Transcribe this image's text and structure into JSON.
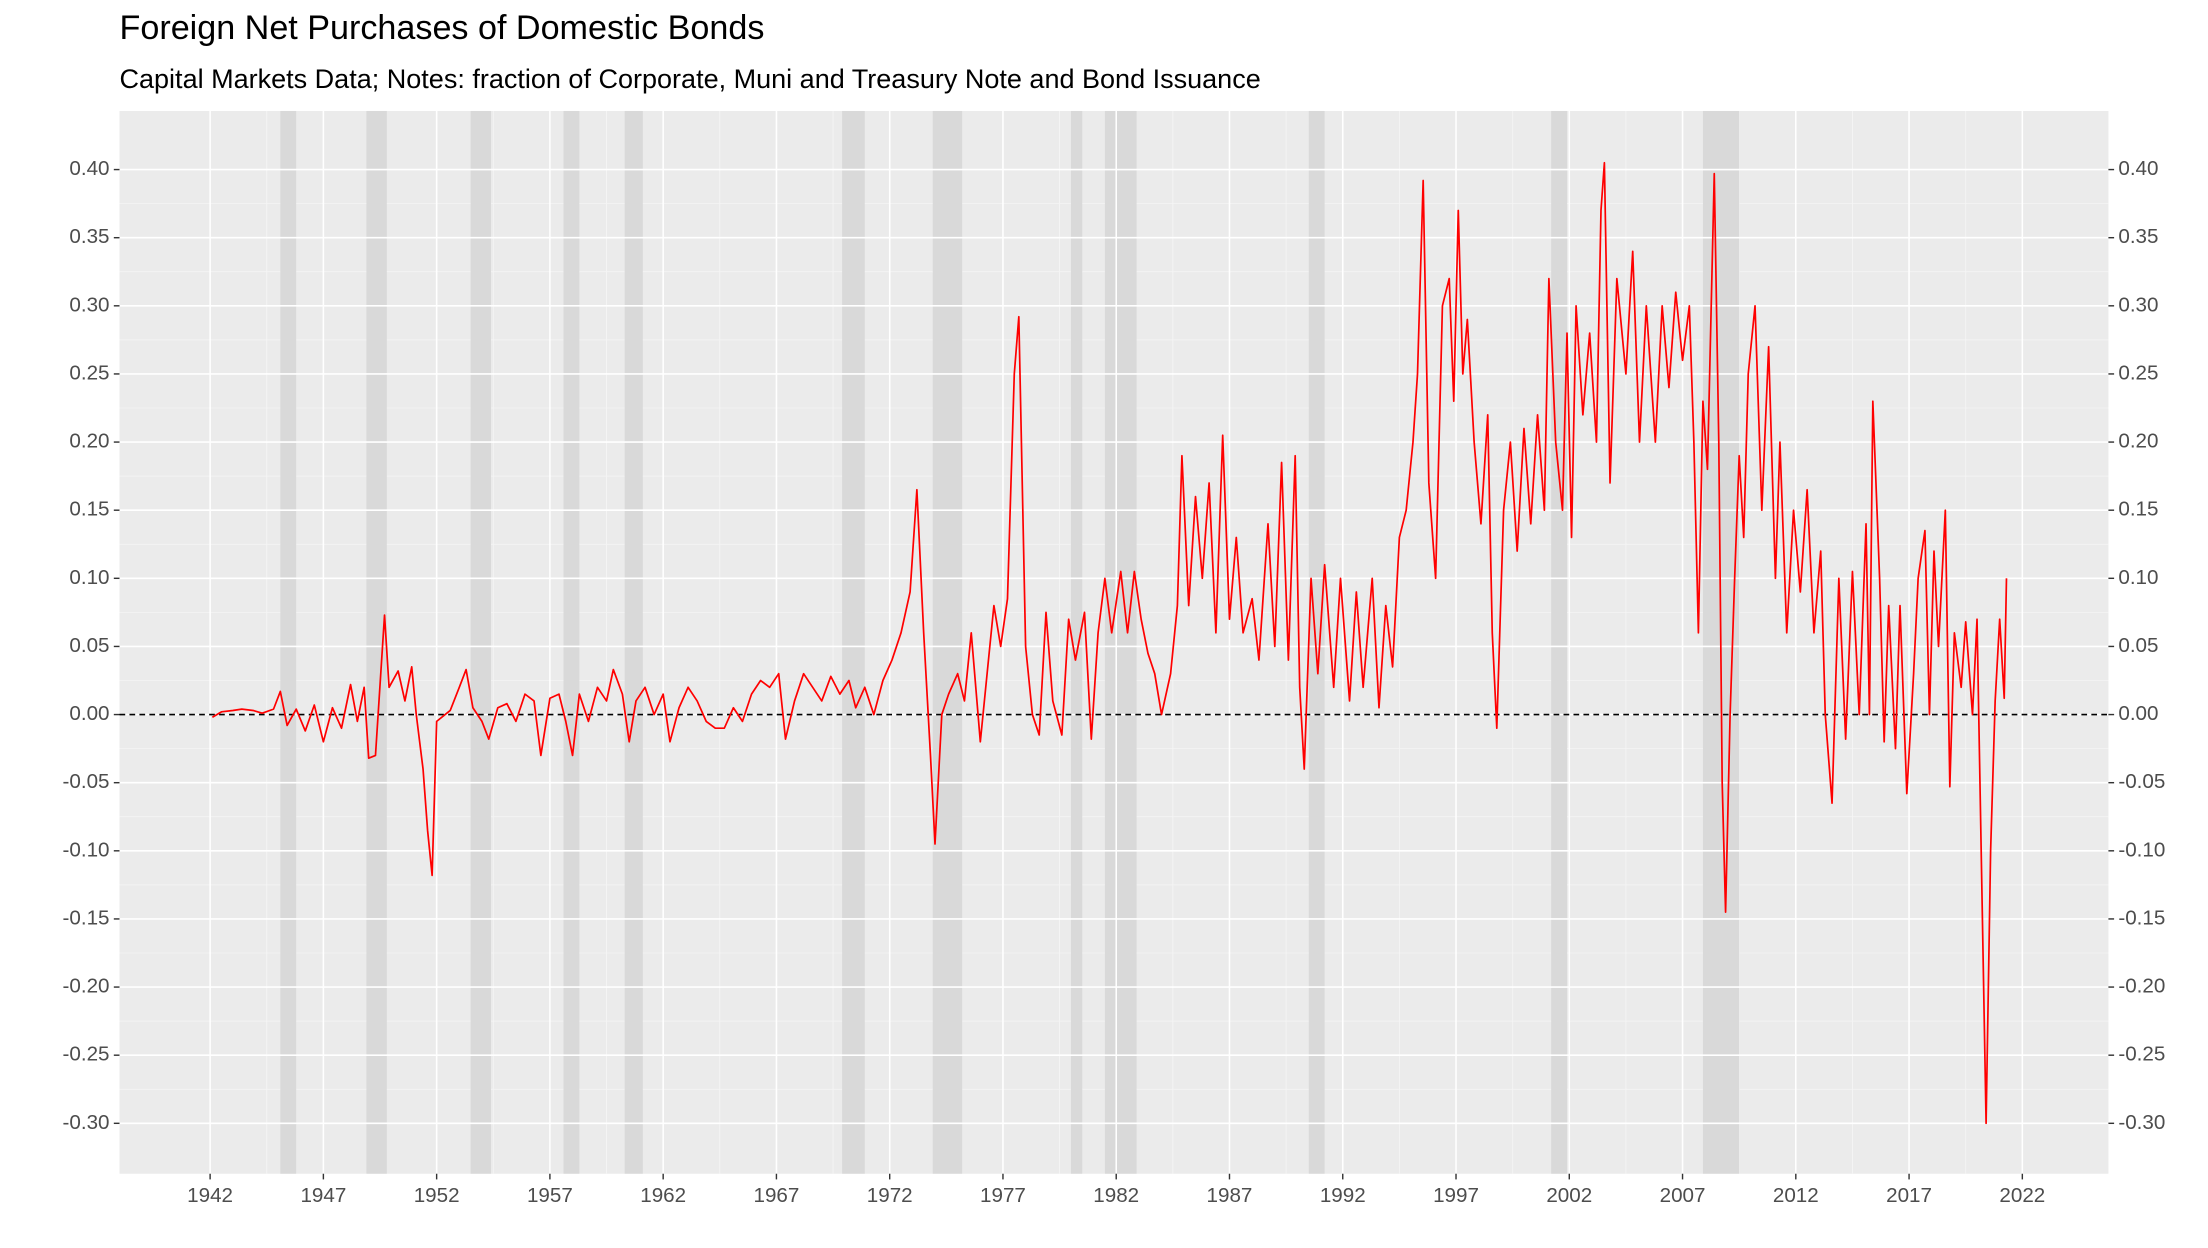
{
  "chart_data": {
    "type": "line",
    "title": "Foreign Net Purchases of Domestic Bonds",
    "subtitle": "Capital Markets Data; Notes: fraction of Corporate, Muni and Treasury Note and Bond Issuance",
    "color": "#ff0000",
    "x": [
      1942.1,
      1942.5,
      1943.0,
      1943.4,
      1943.9,
      1944.3,
      1944.8,
      1945.1,
      1945.4,
      1945.8,
      1946.2,
      1946.6,
      1947.0,
      1947.4,
      1947.8,
      1948.2,
      1948.5,
      1948.8,
      1949.0,
      1949.3,
      1949.7,
      1949.9,
      1950.3,
      1950.6,
      1950.9,
      1951.1,
      1951.4,
      1951.6,
      1951.8,
      1952.0,
      1952.6,
      1953.0,
      1953.3,
      1953.6,
      1954.0,
      1954.3,
      1954.7,
      1955.1,
      1955.5,
      1955.9,
      1956.3,
      1956.6,
      1957.0,
      1957.4,
      1957.7,
      1958.0,
      1958.3,
      1958.7,
      1959.1,
      1959.5,
      1959.8,
      1960.2,
      1960.5,
      1960.8,
      1961.2,
      1961.6,
      1962.0,
      1962.3,
      1962.7,
      1963.1,
      1963.5,
      1963.9,
      1964.3,
      1964.7,
      1965.1,
      1965.5,
      1965.9,
      1966.3,
      1966.7,
      1967.1,
      1967.4,
      1967.8,
      1968.2,
      1968.6,
      1969.0,
      1969.4,
      1969.8,
      1970.2,
      1970.5,
      1970.9,
      1971.3,
      1971.7,
      1972.1,
      1972.5,
      1972.9,
      1973.2,
      1973.5,
      1973.8,
      1974.0,
      1974.3,
      1974.6,
      1975.0,
      1975.3,
      1975.6,
      1976.0,
      1976.3,
      1976.6,
      1976.9,
      1977.2,
      1977.5,
      1977.7,
      1978.0,
      1978.3,
      1978.6,
      1978.9,
      1979.2,
      1979.6,
      1979.9,
      1980.2,
      1980.6,
      1980.9,
      1981.2,
      1981.5,
      1981.8,
      1982.2,
      1982.5,
      1982.8,
      1983.1,
      1983.4,
      1983.7,
      1984.0,
      1984.4,
      1984.7,
      1984.9,
      1985.2,
      1985.5,
      1985.8,
      1986.1,
      1986.4,
      1986.7,
      1987.0,
      1987.3,
      1987.6,
      1988.0,
      1988.3,
      1988.7,
      1989.0,
      1989.3,
      1989.6,
      1989.9,
      1990.1,
      1990.3,
      1990.6,
      1990.9,
      1991.2,
      1991.6,
      1991.9,
      1992.3,
      1992.6,
      1992.9,
      1993.3,
      1993.6,
      1993.9,
      1994.2,
      1994.5,
      1994.8,
      1995.1,
      1995.3,
      1995.55,
      1995.8,
      1996.1,
      1996.4,
      1996.7,
      1996.9,
      1997.1,
      1997.3,
      1997.5,
      1997.8,
      1998.1,
      1998.4,
      1998.6,
      1998.8,
      1999.1,
      1999.4,
      1999.7,
      2000.0,
      2000.3,
      2000.6,
      2000.9,
      2001.1,
      2001.4,
      2001.7,
      2001.9,
      2002.1,
      2002.3,
      2002.6,
      2002.9,
      2003.2,
      2003.4,
      2003.55,
      2003.8,
      2004.1,
      2004.5,
      2004.8,
      2005.1,
      2005.4,
      2005.8,
      2006.1,
      2006.4,
      2006.7,
      2007.0,
      2007.3,
      2007.5,
      2007.7,
      2007.9,
      2008.1,
      2008.4,
      2008.6,
      2008.75,
      2008.9,
      2009.1,
      2009.3,
      2009.5,
      2009.7,
      2009.9,
      2010.2,
      2010.5,
      2010.8,
      2011.1,
      2011.3,
      2011.6,
      2011.9,
      2012.2,
      2012.5,
      2012.8,
      2013.1,
      2013.3,
      2013.6,
      2013.9,
      2014.2,
      2014.5,
      2014.8,
      2015.1,
      2015.25,
      2015.4,
      2015.7,
      2015.9,
      2016.1,
      2016.4,
      2016.6,
      2016.9,
      2017.2,
      2017.4,
      2017.7,
      2017.9,
      2018.1,
      2018.3,
      2018.6,
      2018.8,
      2019.0,
      2019.3,
      2019.5,
      2019.8,
      2020.0,
      2020.4,
      2020.6,
      2020.8,
      2021.0,
      2021.2,
      2021.3
    ],
    "values": [
      -0.002,
      0.002,
      0.003,
      0.004,
      0.003,
      0.001,
      0.004,
      0.017,
      -0.008,
      0.004,
      -0.012,
      0.007,
      -0.02,
      0.005,
      -0.01,
      0.022,
      -0.005,
      0.02,
      -0.032,
      -0.03,
      0.073,
      0.02,
      0.032,
      0.01,
      0.035,
      0.0,
      -0.04,
      -0.085,
      -0.118,
      -0.005,
      0.003,
      0.02,
      0.033,
      0.005,
      -0.005,
      -0.018,
      0.005,
      0.008,
      -0.005,
      0.015,
      0.01,
      -0.03,
      0.012,
      0.015,
      -0.005,
      -0.03,
      0.015,
      -0.005,
      0.02,
      0.01,
      0.033,
      0.015,
      -0.02,
      0.01,
      0.02,
      0.0,
      0.015,
      -0.02,
      0.005,
      0.02,
      0.01,
      -0.005,
      -0.01,
      -0.01,
      0.005,
      -0.005,
      0.015,
      0.025,
      0.02,
      0.03,
      -0.018,
      0.01,
      0.03,
      0.02,
      0.01,
      0.028,
      0.015,
      0.025,
      0.005,
      0.02,
      0.0,
      0.025,
      0.04,
      0.06,
      0.09,
      0.165,
      0.06,
      -0.03,
      -0.095,
      0.0,
      0.015,
      0.03,
      0.01,
      0.06,
      -0.02,
      0.03,
      0.08,
      0.05,
      0.085,
      0.25,
      0.292,
      0.05,
      0.0,
      -0.015,
      0.075,
      0.01,
      -0.015,
      0.07,
      0.04,
      0.075,
      -0.018,
      0.06,
      0.1,
      0.06,
      0.105,
      0.06,
      0.105,
      0.07,
      0.045,
      0.03,
      0.0,
      0.03,
      0.08,
      0.19,
      0.08,
      0.16,
      0.1,
      0.17,
      0.06,
      0.205,
      0.07,
      0.13,
      0.06,
      0.085,
      0.04,
      0.14,
      0.05,
      0.185,
      0.04,
      0.19,
      0.02,
      -0.04,
      0.1,
      0.03,
      0.11,
      0.02,
      0.1,
      0.01,
      0.09,
      0.02,
      0.1,
      0.005,
      0.08,
      0.035,
      0.13,
      0.15,
      0.2,
      0.25,
      0.392,
      0.17,
      0.1,
      0.3,
      0.32,
      0.23,
      0.37,
      0.25,
      0.29,
      0.2,
      0.14,
      0.22,
      0.06,
      -0.01,
      0.15,
      0.2,
      0.12,
      0.21,
      0.14,
      0.22,
      0.15,
      0.32,
      0.2,
      0.15,
      0.28,
      0.13,
      0.3,
      0.22,
      0.28,
      0.2,
      0.37,
      0.405,
      0.17,
      0.32,
      0.25,
      0.34,
      0.2,
      0.3,
      0.2,
      0.3,
      0.24,
      0.31,
      0.26,
      0.3,
      0.2,
      0.06,
      0.23,
      0.18,
      0.397,
      0.2,
      -0.05,
      -0.145,
      0.0,
      0.1,
      0.19,
      0.13,
      0.25,
      0.3,
      0.15,
      0.27,
      0.1,
      0.2,
      0.06,
      0.15,
      0.09,
      0.165,
      0.06,
      0.12,
      0.0,
      -0.065,
      0.1,
      -0.018,
      0.105,
      0.0,
      0.14,
      0.0,
      0.23,
      0.1,
      -0.02,
      0.08,
      -0.025,
      0.08,
      -0.058,
      0.03,
      0.1,
      0.135,
      0.0,
      0.12,
      0.05,
      0.15,
      -0.053,
      0.06,
      0.02,
      0.068,
      0.0,
      0.07,
      -0.3,
      -0.1,
      0.01,
      0.07,
      0.012,
      0.1
    ],
    "recessions": [
      [
        1945.1,
        1945.8
      ],
      [
        1948.9,
        1949.8
      ],
      [
        1953.5,
        1954.4
      ],
      [
        1957.6,
        1958.3
      ],
      [
        1960.3,
        1961.1
      ],
      [
        1969.9,
        1970.9
      ],
      [
        1973.9,
        1975.2
      ],
      [
        1980.0,
        1980.5
      ],
      [
        1981.5,
        1982.9
      ],
      [
        1990.5,
        1991.2
      ],
      [
        2001.2,
        2001.9
      ],
      [
        2007.9,
        2009.5
      ]
    ],
    "recession_color": "#d9d9d9",
    "hline": 0,
    "xlim": [
      1938,
      2025.8
    ],
    "xticks": [
      1942,
      1947,
      1952,
      1957,
      1962,
      1967,
      1972,
      1977,
      1982,
      1987,
      1992,
      1997,
      2002,
      2007,
      2012,
      2017,
      2022
    ],
    "ylim": [
      -0.337,
      0.443
    ],
    "yticks": [
      {
        "value": -0.3,
        "label": "-0.30"
      },
      -0.25,
      {
        "value": -0.2,
        "label": "-0.20"
      },
      -0.15,
      {
        "value": -0.1,
        "label": "-0.10"
      },
      -0.05,
      {
        "value": 0,
        "label": "0.00"
      },
      0.05,
      {
        "value": 0.1,
        "label": "0.10"
      },
      0.15,
      {
        "value": 0.2,
        "label": "0.20"
      },
      0.25,
      {
        "value": 0.3,
        "label": "0.30"
      },
      0.35,
      {
        "value": 0.4,
        "label": "0.40"
      }
    ],
    "grid": true
  }
}
